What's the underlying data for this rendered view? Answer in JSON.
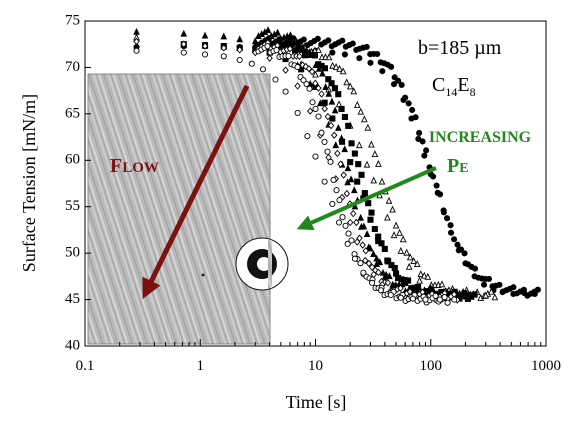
{
  "chart_data": {
    "type": "scatter",
    "xlabel": "Time [s]",
    "ylabel": "Surface Tension [mN/m]",
    "xscale": "log",
    "xlim": [
      0.1,
      1000
    ],
    "ylim": [
      40,
      75
    ],
    "xticks": [
      0.1,
      1,
      10,
      100,
      1000
    ],
    "xtick_labels": [
      "0.1",
      "1",
      "10",
      "100",
      "1000"
    ],
    "yticks": [
      40,
      45,
      50,
      55,
      60,
      65,
      70,
      75
    ],
    "ytick_labels": [
      "40",
      "45",
      "50",
      "55",
      "60",
      "65",
      "70",
      "75"
    ],
    "grid": false,
    "series": [
      {
        "marker": "filled-circle",
        "fill": "#000000",
        "t_half": 100,
        "steepness": 1.18,
        "y_start": 72.8,
        "y_end": 45.6,
        "x": [
          0.28,
          0.72,
          1.1,
          1.6,
          2.2,
          3,
          4,
          5.5,
          7.5,
          10,
          14,
          18,
          24,
          30,
          38,
          48,
          58,
          68,
          78,
          88,
          100,
          115,
          130,
          150,
          175,
          200,
          240,
          290,
          350,
          420,
          520,
          650,
          800
        ],
        "y": [
          72.2,
          72.3,
          72.3,
          72.2,
          72.2,
          72.2,
          72.1,
          72.0,
          71.9,
          71.8,
          71.6,
          71.4,
          71.0,
          70.5,
          69.6,
          68.2,
          66.5,
          64.5,
          62.3,
          60.5,
          58.5,
          56.5,
          54.4,
          52.2,
          50.3,
          48.9,
          47.5,
          46.6,
          46.0,
          45.8,
          45.6,
          45.7,
          45.6
        ]
      },
      {
        "marker": "open-triangle",
        "fill": "none",
        "t_half": 36,
        "steepness": 1.25,
        "y_start": 72.4,
        "y_end": 45.4,
        "x": [
          0.28,
          0.72,
          1.1,
          1.6,
          2.2,
          3,
          4,
          5.5,
          7.5,
          10,
          13,
          16,
          20,
          24,
          28,
          32,
          36,
          42,
          48,
          55,
          65,
          80,
          100,
          130,
          170,
          220,
          300
        ],
        "y": [
          73.2,
          72.4,
          72.3,
          72.2,
          72.1,
          71.9,
          71.6,
          71.1,
          70.3,
          69.2,
          67.6,
          66.0,
          63.7,
          61.6,
          59.5,
          57.8,
          56.2,
          53.8,
          51.9,
          50.2,
          48.5,
          47.0,
          46.2,
          45.8,
          45.6,
          45.5,
          45.4
        ]
      },
      {
        "marker": "filled-square",
        "fill": "#000000",
        "t_half": 24,
        "steepness": 1.4,
        "y_start": 72.6,
        "y_end": 45.4,
        "x": [
          0.72,
          1.1,
          1.6,
          2.2,
          3,
          4,
          5.5,
          7.5,
          10,
          12,
          14,
          17,
          20,
          23,
          26,
          30,
          35,
          42,
          50,
          60,
          75,
          95,
          120,
          160,
          220
        ],
        "y": [
          72.5,
          72.4,
          72.3,
          72.1,
          71.9,
          71.6,
          70.9,
          69.8,
          67.9,
          66.2,
          64.5,
          62.0,
          59.8,
          57.7,
          55.9,
          53.6,
          51.3,
          49.2,
          47.8,
          46.8,
          46.0,
          45.6,
          45.5,
          45.4,
          45.4
        ]
      },
      {
        "marker": "filled-triangle",
        "fill": "#000000",
        "t_half": 19,
        "steepness": 1.45,
        "y_start": 73.8,
        "y_end": 45.4,
        "x": [
          0.28,
          0.72,
          1.1,
          1.6,
          2.2,
          3,
          3.6,
          5,
          7,
          9,
          11,
          13,
          15,
          17,
          19,
          22,
          25,
          29,
          34,
          40,
          48,
          60,
          80,
          110,
          150
        ],
        "y": [
          73.8,
          73.6,
          73.4,
          73.3,
          73.0,
          72.8,
          72.5,
          71.6,
          70.2,
          68.2,
          66.1,
          63.8,
          61.6,
          59.5,
          57.6,
          55.0,
          52.8,
          50.6,
          48.8,
          47.4,
          46.4,
          45.7,
          45.5,
          45.4,
          45.4
        ]
      },
      {
        "marker": "open-diamond",
        "fill": "none",
        "t_half": 17,
        "steepness": 1.5,
        "y_start": 72.5,
        "y_end": 45.3,
        "x": [
          0.28,
          0.72,
          1.1,
          1.6,
          2.2,
          3,
          4,
          5.5,
          7,
          9,
          11,
          13,
          15,
          17,
          20,
          23,
          27,
          32,
          38,
          46,
          56,
          70,
          90,
          120
        ],
        "y": [
          72.8,
          72.5,
          72.3,
          72.1,
          71.9,
          71.6,
          71.0,
          69.7,
          68.0,
          65.3,
          62.7,
          60.3,
          58.0,
          56.0,
          53.3,
          51.2,
          49.2,
          47.7,
          46.6,
          45.9,
          45.5,
          45.4,
          45.3,
          45.3
        ]
      },
      {
        "marker": "open-circle",
        "fill": "none",
        "t_half": 14,
        "steepness": 1.5,
        "y_start": 72.3,
        "y_end": 45.0,
        "x": [
          0.28,
          0.72,
          1.1,
          1.6,
          2.2,
          2.8,
          3.5,
          4.5,
          5.5,
          7,
          8.5,
          10,
          12,
          14,
          16,
          19,
          22,
          26,
          31,
          37,
          45,
          55,
          70,
          90,
          120,
          160
        ],
        "y": [
          71.8,
          71.6,
          71.4,
          71.2,
          70.8,
          70.4,
          69.8,
          68.7,
          67.4,
          65.1,
          62.6,
          60.4,
          57.7,
          55.3,
          53.3,
          51.0,
          49.4,
          47.9,
          46.8,
          46.0,
          45.5,
          45.2,
          45.1,
          45.0,
          45.0,
          45.0
        ]
      }
    ],
    "annotations": {
      "width_label": "b=185 µm",
      "surfactant_main": "C",
      "surfactant_sub1": "14",
      "surfactant_mid": "E",
      "surfactant_sub2": "8",
      "increasing_label": "INCREASING",
      "pe_main": "P",
      "pe_small": "E",
      "flow_first": "F",
      "flow_rest": "LOW"
    },
    "colors": {
      "increasing": "#22881e",
      "flow": "#7a1212",
      "markers": "#000000"
    }
  }
}
